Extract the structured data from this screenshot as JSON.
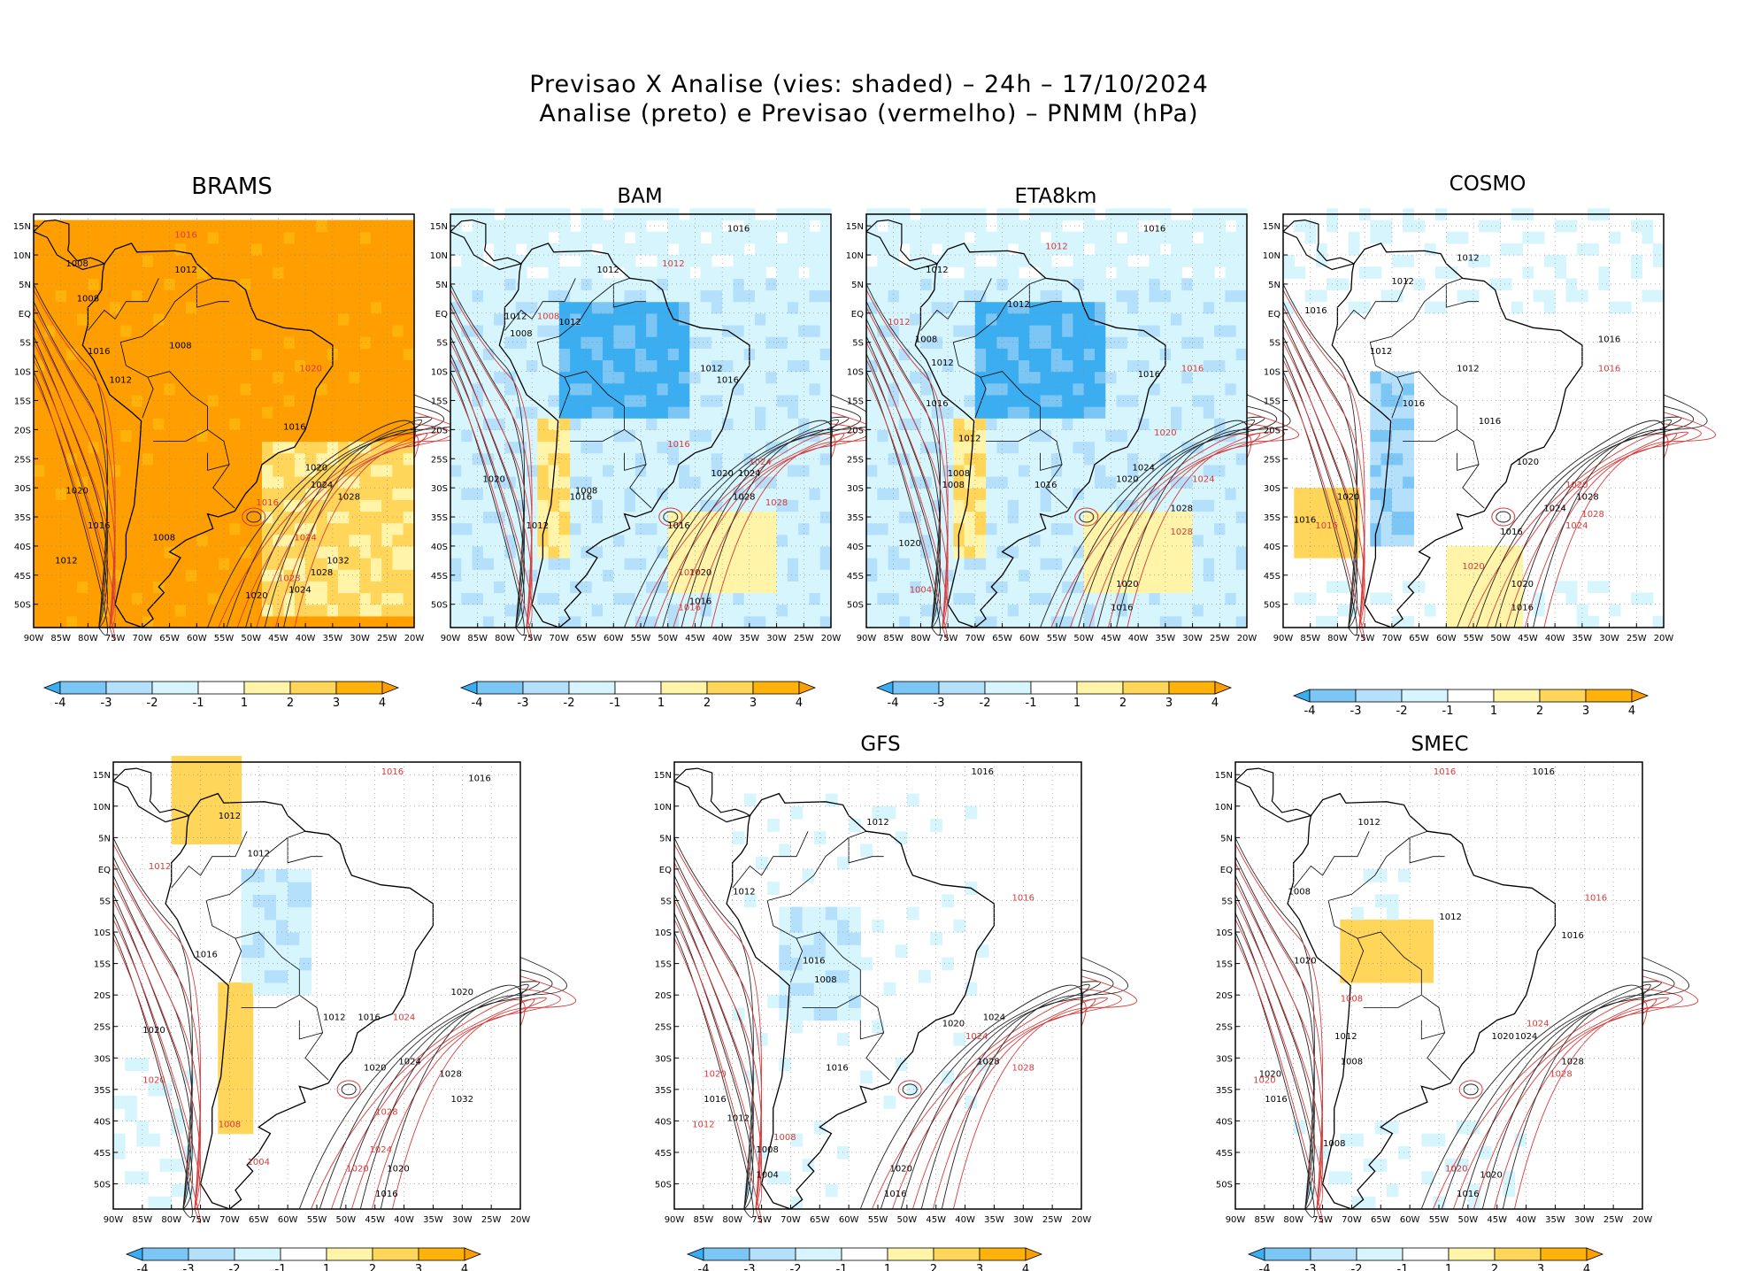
{
  "header": {
    "line1": "Previsao X Analise (vies: shaded) – 24h – 17/10/2024",
    "line2": "Analise (preto) e Previsao (vermelho) – PNMM (hPa)"
  },
  "chart_data": {
    "type": "heatmap",
    "variable": "PNMM (hPa)",
    "shading": "vies (Previsao - Analise)",
    "forecast_hour": "24h",
    "date": "17/10/2024",
    "x_ticks": [
      "90W",
      "85W",
      "80W",
      "75W",
      "70W",
      "65W",
      "60W",
      "55W",
      "50W",
      "45W",
      "40W",
      "35W",
      "30W",
      "25W",
      "20W"
    ],
    "y_ticks": [
      "15N",
      "10N",
      "5N",
      "EQ",
      "5S",
      "10S",
      "15S",
      "20S",
      "25S",
      "30S",
      "35S",
      "40S",
      "45S",
      "50S"
    ],
    "xlim": [
      -90,
      -20
    ],
    "ylim": [
      -54,
      17
    ],
    "colorbar": {
      "labels": [
        "-4",
        "-3",
        "-2",
        "-1",
        "1",
        "2",
        "3",
        "4"
      ],
      "colors": [
        "#3aaef0",
        "#7cc6f5",
        "#b4e0fb",
        "#d6f5fd",
        "#ffffff",
        "#fff4a8",
        "#ffd65a",
        "#ffb20a",
        "#ff9e00"
      ]
    },
    "panels": [
      {
        "name": "BRAMS",
        "shade": "warm",
        "labels": [
          [
            "1008",
            -82,
            8
          ],
          [
            "1012",
            -62,
            7
          ],
          [
            "1008",
            -80,
            2
          ],
          [
            "1008",
            -63,
            -6
          ],
          [
            "1012",
            -74,
            -12
          ],
          [
            "1016",
            -78,
            -7
          ],
          [
            "1016",
            -42,
            -20
          ],
          [
            "1020",
            -38,
            -27
          ],
          [
            "1024",
            -37,
            -30
          ],
          [
            "1028",
            -32,
            -32
          ],
          [
            "1020",
            -82,
            -31
          ],
          [
            "1016",
            -78,
            -37
          ],
          [
            "1012",
            -84,
            -43
          ],
          [
            "1008",
            -66,
            -39
          ],
          [
            "1032",
            -34,
            -43
          ],
          [
            "1028",
            -37,
            -45
          ],
          [
            "1024",
            -41,
            -48
          ],
          [
            "1020",
            -49,
            -49
          ]
        ],
        "red_labels": [
          [
            "1016",
            -62,
            13
          ],
          [
            "1020",
            -39,
            -10
          ],
          [
            "1024",
            -40,
            -39
          ],
          [
            "1016",
            -47,
            -33
          ],
          [
            "1028",
            -43,
            -46
          ]
        ]
      },
      {
        "name": "BAM",
        "shade": "cool",
        "labels": [
          [
            "1016",
            -37,
            14
          ],
          [
            "1012",
            -61,
            7
          ],
          [
            "1008",
            -77,
            -4
          ],
          [
            "1012",
            -78,
            -1
          ],
          [
            "1012",
            -68,
            -2
          ],
          [
            "1012",
            -42,
            -10
          ],
          [
            "1016",
            -39,
            -12
          ],
          [
            "1020",
            -82,
            -29
          ],
          [
            "1012",
            -74,
            -37
          ],
          [
            "1016",
            -66,
            -32
          ],
          [
            "1008",
            -65,
            -31
          ],
          [
            "1016",
            -48,
            -37
          ],
          [
            "1020",
            -40,
            -28
          ],
          [
            "1024",
            -35,
            -28
          ],
          [
            "1028",
            -36,
            -32
          ],
          [
            "1020",
            -44,
            -45
          ],
          [
            "1016",
            -44,
            -50
          ]
        ],
        "red_labels": [
          [
            "1012",
            -49,
            8
          ],
          [
            "1008",
            -72,
            -1
          ],
          [
            "1016",
            -48,
            -23
          ],
          [
            "1024",
            -33,
            -26
          ],
          [
            "1028",
            -30,
            -33
          ],
          [
            "1020",
            -46,
            -45
          ],
          [
            "1016",
            -46,
            -51
          ]
        ]
      },
      {
        "name": "ETA8km",
        "shade": "cool",
        "labels": [
          [
            "1016",
            -37,
            14
          ],
          [
            "1012",
            -77,
            7
          ],
          [
            "1012",
            -62,
            1
          ],
          [
            "1008",
            -79,
            -5
          ],
          [
            "1012",
            -76,
            -9
          ],
          [
            "1016",
            -77,
            -16
          ],
          [
            "1012",
            -71,
            -22
          ],
          [
            "1008",
            -73,
            -28
          ],
          [
            "1008",
            -74,
            -30
          ],
          [
            "1016",
            -57,
            -30
          ],
          [
            "1020",
            -82,
            -40
          ],
          [
            "1020",
            -42,
            -29
          ],
          [
            "1024",
            -39,
            -27
          ],
          [
            "1028",
            -32,
            -34
          ],
          [
            "1020",
            -42,
            -47
          ],
          [
            "1016",
            -43,
            -51
          ],
          [
            "1016",
            -38,
            -11
          ]
        ],
        "red_labels": [
          [
            "1012",
            -55,
            11
          ],
          [
            "1012",
            -84,
            -2
          ],
          [
            "1016",
            -30,
            -10
          ],
          [
            "1020",
            -35,
            -21
          ],
          [
            "1024",
            -28,
            -29
          ],
          [
            "1028",
            -32,
            -38
          ],
          [
            "1004",
            -80,
            -48
          ]
        ]
      },
      {
        "name": "COSMO",
        "shade": "mixed",
        "labels": [
          [
            "1012",
            -56,
            9
          ],
          [
            "1012",
            -68,
            5
          ],
          [
            "1016",
            -84,
            0
          ],
          [
            "1012",
            -72,
            -7
          ],
          [
            "1012",
            -56,
            -10
          ],
          [
            "1016",
            -66,
            -16
          ],
          [
            "1016",
            -30,
            -5
          ],
          [
            "1020",
            -45,
            -26
          ],
          [
            "1024",
            -40,
            -34
          ],
          [
            "1028",
            -34,
            -32
          ],
          [
            "1016",
            -86,
            -36
          ],
          [
            "1020",
            -78,
            -32
          ],
          [
            "1016",
            -48,
            -38
          ],
          [
            "1020",
            -46,
            -47
          ],
          [
            "1016",
            -46,
            -51
          ],
          [
            "1016",
            -52,
            -19
          ]
        ],
        "red_labels": [
          [
            "1016",
            -30,
            -10
          ],
          [
            "1020",
            -36,
            -30
          ],
          [
            "1024",
            -36,
            -37
          ],
          [
            "1020",
            -55,
            -44
          ],
          [
            "1028",
            -33,
            -35
          ],
          [
            "1016",
            -82,
            -37
          ]
        ]
      },
      {
        "name": "",
        "shade": "mixed2",
        "labels": [
          [
            "1016",
            -27,
            14
          ],
          [
            "1012",
            -70,
            8
          ],
          [
            "1012",
            -65,
            2
          ],
          [
            "1016",
            -74,
            -14
          ],
          [
            "1012",
            -52,
            -24
          ],
          [
            "1020",
            -30,
            -20
          ],
          [
            "1020",
            -83,
            -26
          ],
          [
            "1016",
            -46,
            -24
          ],
          [
            "1020",
            -45,
            -32
          ],
          [
            "1024",
            -39,
            -31
          ],
          [
            "1028",
            -32,
            -33
          ],
          [
            "1032",
            -30,
            -37
          ],
          [
            "1020",
            -41,
            -48
          ],
          [
            "1016",
            -43,
            -52
          ]
        ],
        "red_labels": [
          [
            "1016",
            -42,
            15
          ],
          [
            "1012",
            -82,
            0
          ],
          [
            "1020",
            -83,
            -34
          ],
          [
            "1024",
            -40,
            -24
          ],
          [
            "1028",
            -43,
            -39
          ],
          [
            "1024",
            -44,
            -45
          ],
          [
            "1020",
            -48,
            -48
          ],
          [
            "1004",
            -65,
            -47
          ],
          [
            "1008",
            -70,
            -41
          ]
        ]
      },
      {
        "name": "GFS",
        "shade": "cool2",
        "labels": [
          [
            "1016",
            -37,
            15
          ],
          [
            "1012",
            -55,
            7
          ],
          [
            "1012",
            -78,
            -4
          ],
          [
            "1016",
            -66,
            -15
          ],
          [
            "1008",
            -64,
            -18
          ],
          [
            "1020",
            -42,
            -25
          ],
          [
            "1024",
            -35,
            -24
          ],
          [
            "1028",
            -36,
            -31
          ],
          [
            "1016",
            -62,
            -32
          ],
          [
            "1016",
            -83,
            -37
          ],
          [
            "1012",
            -79,
            -40
          ],
          [
            "1008",
            -74,
            -45
          ],
          [
            "1004",
            -74,
            -49
          ],
          [
            "1020",
            -51,
            -48
          ],
          [
            "1016",
            -52,
            -52
          ]
        ],
        "red_labels": [
          [
            "1016",
            -30,
            -5
          ],
          [
            "1020",
            -83,
            -33
          ],
          [
            "1024",
            -38,
            -27
          ],
          [
            "1028",
            -30,
            -32
          ],
          [
            "1012",
            -85,
            -41
          ],
          [
            "1008",
            -71,
            -43
          ]
        ]
      },
      {
        "name": "SMEC",
        "shade": "mixed3",
        "labels": [
          [
            "1016",
            -37,
            15
          ],
          [
            "1012",
            -67,
            7
          ],
          [
            "1008",
            -79,
            -4
          ],
          [
            "1012",
            -53,
            -8
          ],
          [
            "1016",
            -32,
            -11
          ],
          [
            "1020",
            -78,
            -15
          ],
          [
            "1020",
            -44,
            -27
          ],
          [
            "1024",
            -40,
            -27
          ],
          [
            "1028",
            -32,
            -31
          ],
          [
            "1020",
            -84,
            -33
          ],
          [
            "1016",
            -83,
            -37
          ],
          [
            "1008",
            -70,
            -31
          ],
          [
            "1012",
            -71,
            -27
          ],
          [
            "1008",
            -73,
            -44
          ],
          [
            "1020",
            -46,
            -49
          ],
          [
            "1016",
            -50,
            -52
          ]
        ],
        "red_labels": [
          [
            "1016",
            -54,
            15
          ],
          [
            "1016",
            -28,
            -5
          ],
          [
            "1020",
            -85,
            -34
          ],
          [
            "1024",
            -38,
            -25
          ],
          [
            "1028",
            -34,
            -33
          ],
          [
            "1020",
            -52,
            -48
          ],
          [
            "1008",
            -70,
            -21
          ]
        ]
      }
    ]
  }
}
